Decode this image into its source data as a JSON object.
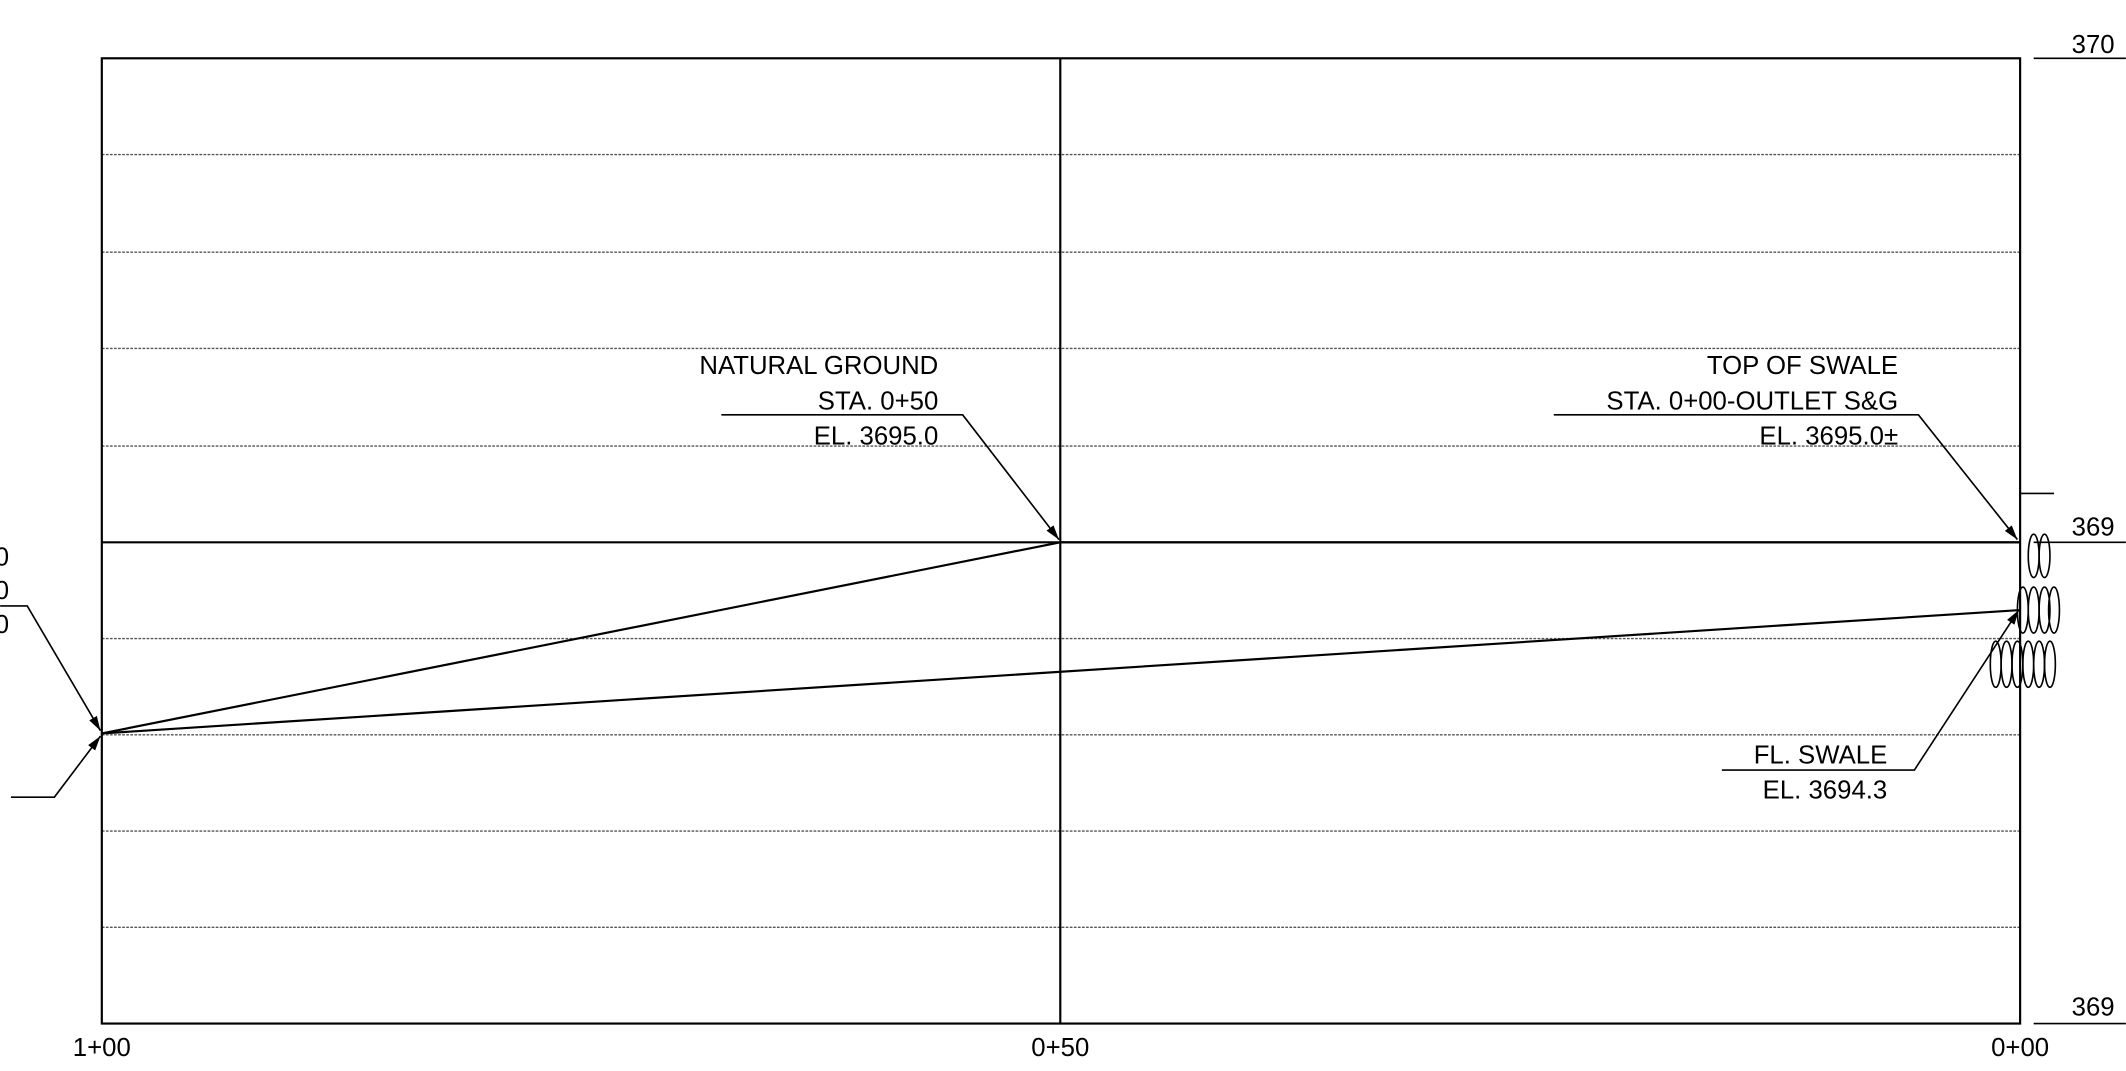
{
  "labels": {
    "natural_ground": [
      "NATURAL GROUND",
      "STA. 0+50",
      "EL. 3695.0"
    ],
    "top_of_swale": [
      "TOP OF SWALE",
      "STA. 0+00-OUTLET S&G",
      "EL. 3695.0±"
    ],
    "flow_line": [
      "FL. SWALE",
      "EL. 3694.3"
    ],
    "left_fragments": [
      "0",
      "0",
      "0"
    ]
  },
  "stations": [
    "1+00",
    "0+50",
    "0+00"
  ],
  "elevations": [
    "370",
    "369",
    "369"
  ]
}
